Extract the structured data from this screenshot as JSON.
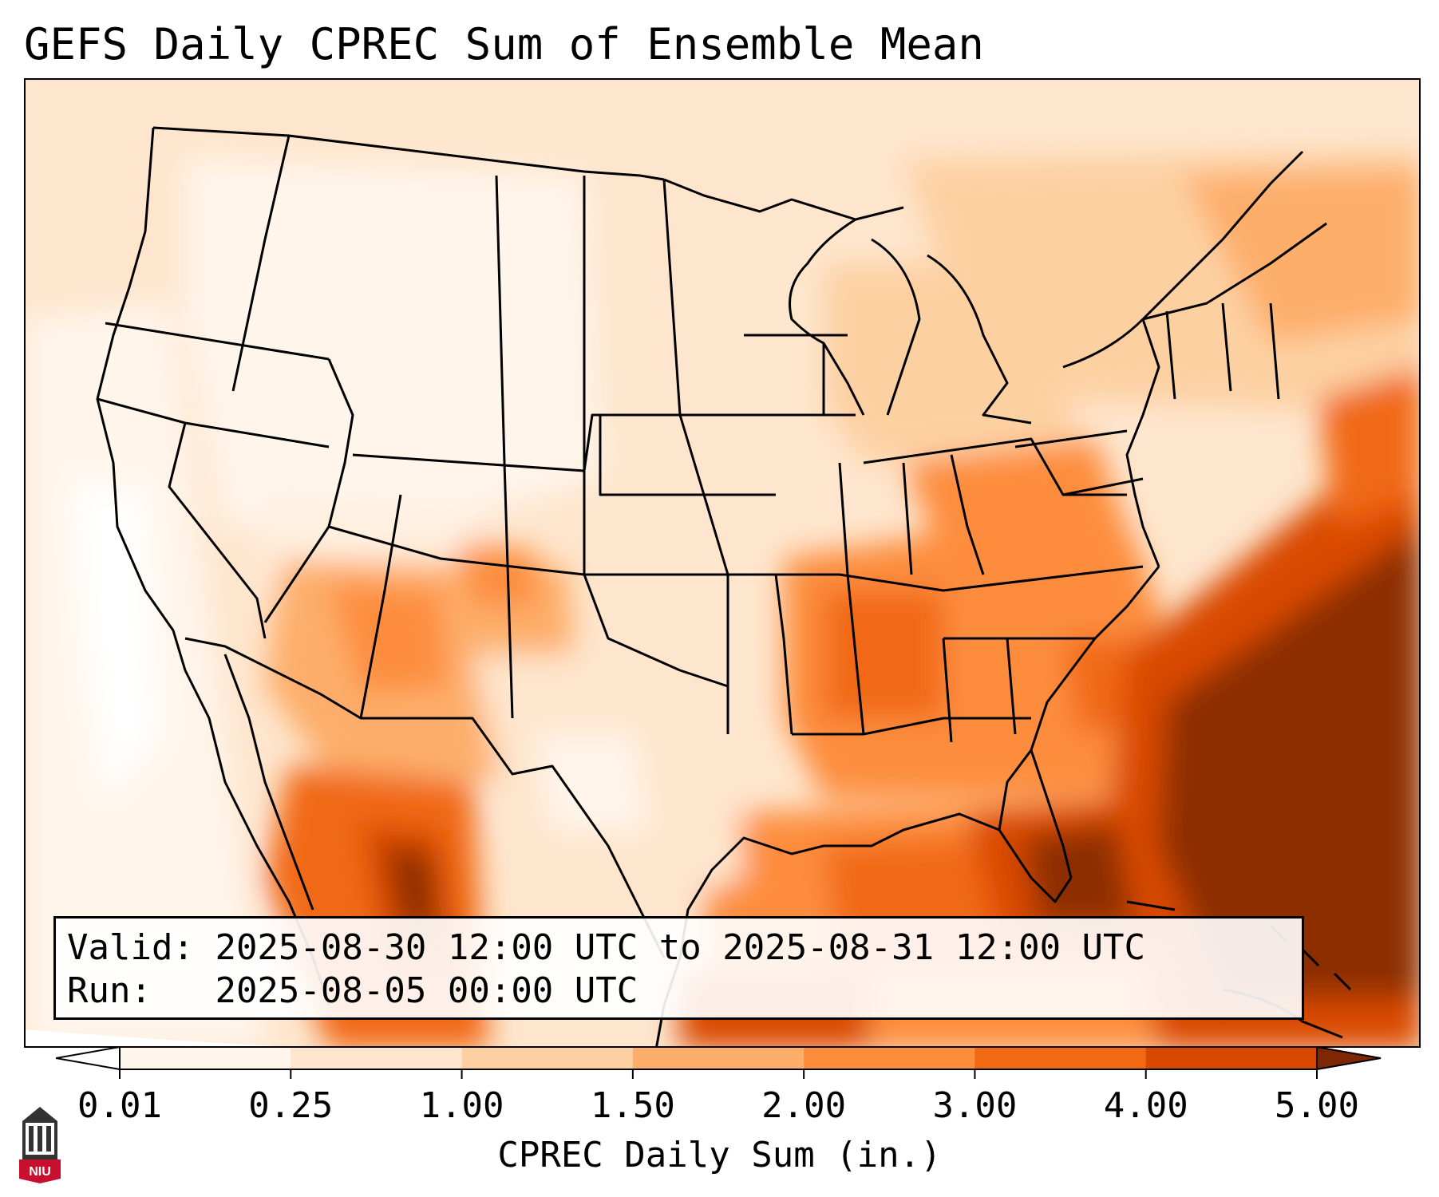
{
  "title": "GEFS Daily CPREC Sum of Ensemble Mean",
  "info": {
    "valid_label": "Valid:",
    "valid_value": "2025-08-30 12:00 UTC to 2025-08-31 12:00 UTC",
    "run_label": "Run:",
    "run_value": "2025-08-05 00:00 UTC"
  },
  "colorbar": {
    "label": "CPREC Daily Sum (in.)",
    "ticks": [
      "0.01",
      "0.25",
      "1.00",
      "1.50",
      "2.00",
      "3.00",
      "4.00",
      "5.00"
    ],
    "colors": [
      "#fff5eb",
      "#fee6ce",
      "#fdd0a2",
      "#fdae6b",
      "#fd8d3c",
      "#f16913",
      "#d94801",
      "#8c2d04"
    ],
    "under_color": "#ffffff",
    "over_color": "#7f2704"
  },
  "logo": {
    "text": "NIU",
    "colors": {
      "red": "#c8102e",
      "dark": "#333333"
    }
  },
  "map": {
    "regions": "contiguous-us-mexico-canada",
    "heaviest_precip_areas": [
      "western-atlantic-offshore-southeast",
      "eastern-gulf-of-mexico",
      "sierra-madre-occidental"
    ]
  }
}
